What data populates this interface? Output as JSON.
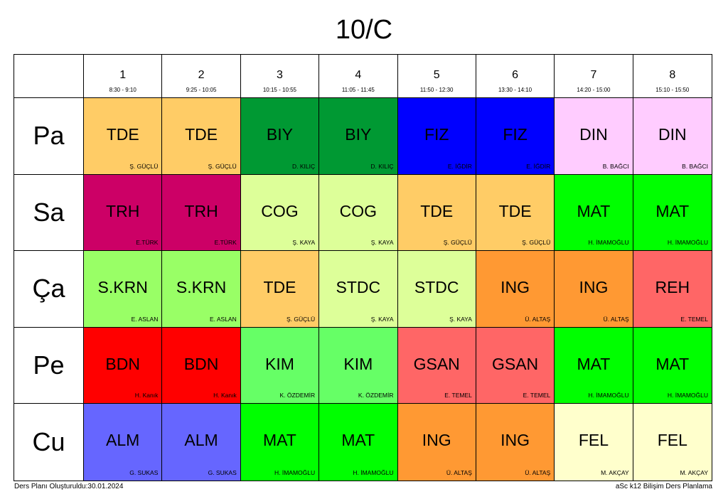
{
  "title": "10/C",
  "colors": {
    "tde": "#ffcc66",
    "biy": "#009933",
    "fiz": "#0000ff",
    "din": "#ffccff",
    "trh": "#cc0066",
    "cog": "#ddff99",
    "mat": "#00ff00",
    "skrn": "#99ff66",
    "stdc": "#ddff99",
    "ing": "#ff9933",
    "reh": "#ff6666",
    "bdn": "#ff0000",
    "kim": "#66ff66",
    "gsan": "#ff6666",
    "alm": "#6666ff",
    "fel": "#ffffcc"
  },
  "periods": [
    {
      "num": "1",
      "time": "8:30 - 9:10"
    },
    {
      "num": "2",
      "time": "9:25 - 10:05"
    },
    {
      "num": "3",
      "time": "10:15 - 10:55"
    },
    {
      "num": "4",
      "time": "11:05 - 11:45"
    },
    {
      "num": "5",
      "time": "11:50 - 12:30"
    },
    {
      "num": "6",
      "time": "13:30 - 14:10"
    },
    {
      "num": "7",
      "time": "14:20 - 15:00"
    },
    {
      "num": "8",
      "time": "15:10 - 15:50"
    }
  ],
  "days": [
    {
      "name": "Pa",
      "lessons": [
        {
          "subject": "TDE",
          "teacher": "Ş. GÜÇLÜ",
          "color": "tde"
        },
        {
          "subject": "TDE",
          "teacher": "Ş. GÜÇLÜ",
          "color": "tde"
        },
        {
          "subject": "BIY",
          "teacher": "D. KILIÇ",
          "color": "biy"
        },
        {
          "subject": "BIY",
          "teacher": "D. KILIÇ",
          "color": "biy"
        },
        {
          "subject": "FIZ",
          "teacher": "E. İĞDİR",
          "color": "fiz"
        },
        {
          "subject": "FIZ",
          "teacher": "E. İĞDİR",
          "color": "fiz"
        },
        {
          "subject": "DIN",
          "teacher": "B. BAĞCI",
          "color": "din"
        },
        {
          "subject": "DIN",
          "teacher": "B. BAĞCI",
          "color": "din"
        }
      ]
    },
    {
      "name": "Sa",
      "lessons": [
        {
          "subject": "TRH",
          "teacher": "E.TÜRK",
          "color": "trh"
        },
        {
          "subject": "TRH",
          "teacher": "E.TÜRK",
          "color": "trh"
        },
        {
          "subject": "COG",
          "teacher": "Ş. KAYA",
          "color": "cog"
        },
        {
          "subject": "COG",
          "teacher": "Ş. KAYA",
          "color": "cog"
        },
        {
          "subject": "TDE",
          "teacher": "Ş. GÜÇLÜ",
          "color": "tde"
        },
        {
          "subject": "TDE",
          "teacher": "Ş. GÜÇLÜ",
          "color": "tde"
        },
        {
          "subject": "MAT",
          "teacher": "H. İMAMOĞLU",
          "color": "mat"
        },
        {
          "subject": "MAT",
          "teacher": "H. İMAMOĞLU",
          "color": "mat"
        }
      ]
    },
    {
      "name": "Ça",
      "lessons": [
        {
          "subject": "S.KRN",
          "teacher": "E. ASLAN",
          "color": "skrn"
        },
        {
          "subject": "S.KRN",
          "teacher": "E. ASLAN",
          "color": "skrn"
        },
        {
          "subject": "TDE",
          "teacher": "Ş. GÜÇLÜ",
          "color": "tde"
        },
        {
          "subject": "STDC",
          "teacher": "Ş. KAYA",
          "color": "stdc"
        },
        {
          "subject": "STDC",
          "teacher": "Ş. KAYA",
          "color": "stdc"
        },
        {
          "subject": "ING",
          "teacher": "Ü. ALTAŞ",
          "color": "ing"
        },
        {
          "subject": "ING",
          "teacher": "Ü. ALTAŞ",
          "color": "ing"
        },
        {
          "subject": "REH",
          "teacher": "E. TEMEL",
          "color": "reh"
        }
      ]
    },
    {
      "name": "Pe",
      "lessons": [
        {
          "subject": "BDN",
          "teacher": "H. Kanık",
          "color": "bdn"
        },
        {
          "subject": "BDN",
          "teacher": "H. Kanık",
          "color": "bdn"
        },
        {
          "subject": "KIM",
          "teacher": "K. ÖZDEMİR",
          "color": "kim"
        },
        {
          "subject": "KIM",
          "teacher": "K. ÖZDEMİR",
          "color": "kim"
        },
        {
          "subject": "GSAN",
          "teacher": "E. TEMEL",
          "color": "gsan"
        },
        {
          "subject": "GSAN",
          "teacher": "E. TEMEL",
          "color": "gsan"
        },
        {
          "subject": "MAT",
          "teacher": "H. İMAMOĞLU",
          "color": "mat"
        },
        {
          "subject": "MAT",
          "teacher": "H. İMAMOĞLU",
          "color": "mat"
        }
      ]
    },
    {
      "name": "Cu",
      "lessons": [
        {
          "subject": "ALM",
          "teacher": "G. SUKAS",
          "color": "alm"
        },
        {
          "subject": "ALM",
          "teacher": "G. SUKAS",
          "color": "alm"
        },
        {
          "subject": "MAT",
          "teacher": "H. İMAMOĞLU",
          "color": "mat"
        },
        {
          "subject": "MAT",
          "teacher": "H. İMAMOĞLU",
          "color": "mat"
        },
        {
          "subject": "ING",
          "teacher": "Ü. ALTAŞ",
          "color": "ing"
        },
        {
          "subject": "ING",
          "teacher": "Ü. ALTAŞ",
          "color": "ing"
        },
        {
          "subject": "FEL",
          "teacher": "M. AKÇAY",
          "color": "fel"
        },
        {
          "subject": "FEL",
          "teacher": "M. AKÇAY",
          "color": "fel"
        }
      ]
    }
  ],
  "footer": {
    "left": "Ders Planı Oluşturuldu:30.01.2024",
    "right": "aSc k12 Bilişim Ders Planlama"
  }
}
